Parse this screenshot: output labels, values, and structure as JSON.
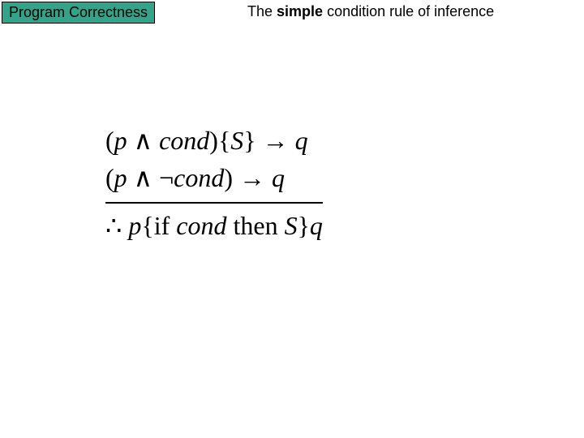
{
  "badge": {
    "label": "Program Correctness",
    "bg_color": "#33a38a",
    "text_color": "#000000",
    "border_color": "#000000"
  },
  "title": {
    "pre": "The ",
    "bold": "simple",
    "post": " condition rule of inference"
  },
  "rule": {
    "premise1": {
      "open": "(",
      "p": "p",
      "and": " ∧ ",
      "cond": "cond",
      "close": ")",
      "lbrace": "{",
      "S": "S",
      "rbrace": "}",
      "arrow": " → ",
      "q": "q"
    },
    "premise2": {
      "open": "(",
      "p": "p",
      "and": " ∧ ",
      "neg": "¬",
      "cond": "cond",
      "close": ")",
      "arrow": " → ",
      "q": "q"
    },
    "conclusion": {
      "therefore": "∴ ",
      "p": "p",
      "lbrace": "{",
      "if": "if ",
      "cond": "cond",
      "then": " then ",
      "S": "S",
      "rbrace": "}",
      "q": "q"
    }
  },
  "colors": {
    "background": "#ffffff"
  }
}
